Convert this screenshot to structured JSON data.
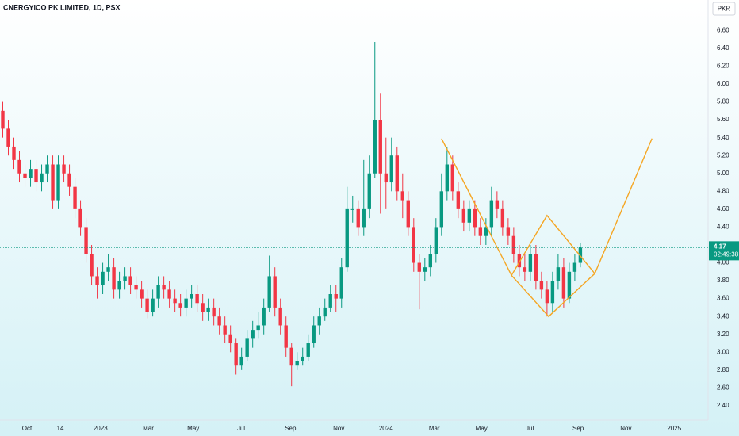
{
  "chart_data": {
    "type": "candlestick",
    "title": "CNERGYICO PK LIMITED, 1D, PSX",
    "currency": "PKR",
    "up_color": "#089981",
    "down_color": "#f23645",
    "open": [
      5.7,
      5.5,
      5.3,
      5.15,
      5.0,
      4.95,
      5.05,
      4.9,
      5.0,
      5.1,
      4.7,
      5.1,
      5.0,
      4.85,
      4.6,
      4.4,
      4.1,
      3.85,
      3.75,
      3.9,
      3.95,
      3.7,
      3.8,
      3.85,
      3.75,
      3.7,
      3.6,
      3.45,
      3.6,
      3.75,
      3.7,
      3.6,
      3.55,
      3.5,
      3.6,
      3.65,
      3.55,
      3.45,
      3.5,
      3.4,
      3.3,
      3.2,
      3.1,
      2.85,
      2.95,
      3.15,
      3.25,
      3.3,
      3.5,
      3.85,
      3.5,
      3.3,
      3.05,
      2.85,
      2.9,
      2.95,
      3.1,
      3.3,
      3.4,
      3.5,
      3.65,
      3.6,
      3.95,
      4.6,
      4.6,
      4.4,
      4.6,
      5.0,
      5.6,
      5.0,
      4.9,
      5.2,
      4.8,
      4.7,
      4.4,
      4.0,
      3.9,
      3.95,
      4.1,
      4.4,
      4.8,
      5.1,
      4.8,
      4.6,
      4.45,
      4.6,
      4.4,
      4.3,
      4.4,
      4.7,
      4.6,
      4.4,
      4.3,
      4.1,
      3.95,
      3.9,
      4.1,
      3.8,
      3.7,
      3.55,
      3.8,
      3.95,
      3.6,
      3.9,
      4.0
    ],
    "high": [
      5.8,
      5.6,
      5.4,
      5.25,
      5.1,
      5.15,
      5.15,
      5.1,
      5.2,
      5.2,
      5.2,
      5.2,
      5.1,
      4.95,
      4.7,
      4.5,
      4.2,
      3.95,
      4.0,
      4.1,
      4.05,
      3.9,
      3.95,
      3.95,
      3.85,
      3.8,
      3.7,
      3.7,
      3.85,
      3.85,
      3.8,
      3.7,
      3.65,
      3.7,
      3.75,
      3.75,
      3.65,
      3.6,
      3.6,
      3.5,
      3.4,
      3.3,
      3.15,
      3.05,
      3.25,
      3.35,
      3.45,
      3.6,
      4.08,
      3.95,
      3.6,
      3.4,
      3.1,
      3.0,
      3.05,
      3.2,
      3.4,
      3.5,
      3.6,
      3.75,
      3.75,
      4.05,
      4.85,
      4.75,
      4.7,
      5.15,
      5.2,
      6.47,
      5.9,
      5.4,
      5.4,
      5.3,
      5.0,
      4.8,
      4.5,
      4.1,
      4.05,
      4.2,
      4.5,
      5.0,
      5.3,
      5.2,
      4.9,
      4.7,
      4.7,
      4.7,
      4.5,
      4.5,
      4.85,
      4.8,
      4.7,
      4.5,
      4.4,
      4.2,
      4.1,
      4.2,
      4.2,
      3.9,
      3.8,
      3.9,
      4.1,
      4.05,
      4.0,
      4.1,
      4.22
    ],
    "low": [
      5.4,
      5.2,
      5.05,
      4.9,
      4.85,
      4.85,
      4.8,
      4.8,
      4.9,
      4.6,
      4.6,
      4.9,
      4.75,
      4.5,
      4.3,
      4.0,
      3.75,
      3.6,
      3.65,
      3.8,
      3.6,
      3.6,
      3.7,
      3.65,
      3.6,
      3.5,
      3.38,
      3.4,
      3.5,
      3.6,
      3.5,
      3.45,
      3.4,
      3.4,
      3.5,
      3.45,
      3.35,
      3.35,
      3.3,
      3.2,
      3.1,
      3.0,
      2.75,
      2.8,
      2.9,
      3.05,
      3.15,
      3.2,
      3.45,
      3.4,
      3.2,
      2.95,
      2.62,
      2.8,
      2.85,
      2.9,
      3.05,
      3.2,
      3.35,
      3.45,
      3.45,
      3.5,
      3.9,
      4.45,
      4.3,
      4.3,
      4.5,
      4.95,
      4.55,
      4.6,
      4.8,
      4.7,
      4.5,
      4.3,
      3.9,
      3.48,
      3.8,
      3.85,
      4.0,
      4.3,
      4.7,
      4.7,
      4.5,
      4.35,
      4.35,
      4.3,
      4.2,
      4.2,
      4.3,
      4.5,
      4.3,
      4.2,
      4.0,
      3.85,
      3.8,
      3.8,
      3.7,
      3.6,
      3.4,
      3.45,
      3.7,
      3.5,
      3.55,
      3.8,
      3.95
    ],
    "close": [
      5.5,
      5.3,
      5.15,
      5.0,
      4.95,
      5.05,
      4.9,
      5.0,
      5.1,
      4.7,
      5.1,
      5.0,
      4.85,
      4.6,
      4.4,
      4.1,
      3.85,
      3.75,
      3.9,
      3.95,
      3.7,
      3.8,
      3.85,
      3.75,
      3.7,
      3.6,
      3.45,
      3.6,
      3.75,
      3.7,
      3.6,
      3.55,
      3.5,
      3.6,
      3.65,
      3.55,
      3.45,
      3.5,
      3.4,
      3.3,
      3.2,
      3.1,
      2.85,
      2.95,
      3.15,
      3.25,
      3.3,
      3.5,
      3.85,
      3.5,
      3.3,
      3.05,
      2.85,
      2.9,
      2.95,
      3.1,
      3.3,
      3.4,
      3.5,
      3.65,
      3.6,
      3.95,
      4.6,
      4.6,
      4.4,
      4.6,
      5.0,
      5.6,
      5.0,
      4.9,
      5.2,
      4.8,
      4.7,
      4.4,
      4.0,
      3.9,
      3.95,
      4.1,
      4.4,
      4.8,
      5.1,
      4.8,
      4.6,
      4.45,
      4.6,
      4.4,
      4.3,
      4.4,
      4.7,
      4.6,
      4.4,
      4.3,
      4.1,
      3.95,
      3.9,
      4.1,
      3.8,
      3.7,
      3.55,
      3.8,
      3.95,
      3.6,
      3.9,
      4.0,
      4.17
    ],
    "last_price": 4.17,
    "countdown": "02:49:38",
    "xlim": [
      -0.5,
      127
    ],
    "ylim": [
      2.24,
      6.94
    ],
    "yticks": [
      {
        "value": 2.4,
        "label": "2.40"
      },
      {
        "value": 2.6,
        "label": "2.60"
      },
      {
        "value": 2.8,
        "label": "2.80"
      },
      {
        "value": 3.0,
        "label": "3.00"
      },
      {
        "value": 3.2,
        "label": "3.20"
      },
      {
        "value": 3.4,
        "label": "3.40"
      },
      {
        "value": 3.6,
        "label": "3.60"
      },
      {
        "value": 3.8,
        "label": "3.80"
      },
      {
        "value": 4.0,
        "label": "4.00"
      },
      {
        "value": 4.2,
        "label": "4.20"
      },
      {
        "value": 4.4,
        "label": "4.40"
      },
      {
        "value": 4.6,
        "label": "4.60"
      },
      {
        "value": 4.8,
        "label": "4.80"
      },
      {
        "value": 5.0,
        "label": "5.00"
      },
      {
        "value": 5.2,
        "label": "5.20"
      },
      {
        "value": 5.4,
        "label": "5.40"
      },
      {
        "value": 5.6,
        "label": "5.60"
      },
      {
        "value": 5.8,
        "label": "5.80"
      },
      {
        "value": 6.0,
        "label": "6.00"
      },
      {
        "value": 6.2,
        "label": "6.20"
      },
      {
        "value": 6.4,
        "label": "6.40"
      },
      {
        "value": 6.6,
        "label": "6.60"
      }
    ],
    "xticks": [
      {
        "value": 4.35,
        "label": "Oct"
      },
      {
        "value": 10.35,
        "label": "14"
      },
      {
        "value": 17.6,
        "label": "2023"
      },
      {
        "value": 26.2,
        "label": "Mar"
      },
      {
        "value": 34.3,
        "label": "May"
      },
      {
        "value": 42.9,
        "label": "Jul"
      },
      {
        "value": 51.8,
        "label": "Sep"
      },
      {
        "value": 60.5,
        "label": "Nov"
      },
      {
        "value": 69.0,
        "label": "2024"
      },
      {
        "value": 77.7,
        "label": "Mar"
      },
      {
        "value": 86.2,
        "label": "May"
      },
      {
        "value": 94.9,
        "label": "Jul"
      },
      {
        "value": 103.6,
        "label": "Sep"
      },
      {
        "value": 112.2,
        "label": "Nov"
      },
      {
        "value": 120.9,
        "label": "2025"
      }
    ],
    "grid": false,
    "drawing_color": "#f5a623",
    "drawings": [
      {
        "x": [
          79.0,
          91.6,
          98.0,
          106.6,
          116.9
        ],
        "y": [
          5.39,
          3.86,
          4.53,
          3.88,
          5.39
        ]
      },
      {
        "x": [
          91.6,
          98.3,
          106.6
        ],
        "y": [
          3.86,
          3.4,
          3.88
        ]
      }
    ]
  }
}
